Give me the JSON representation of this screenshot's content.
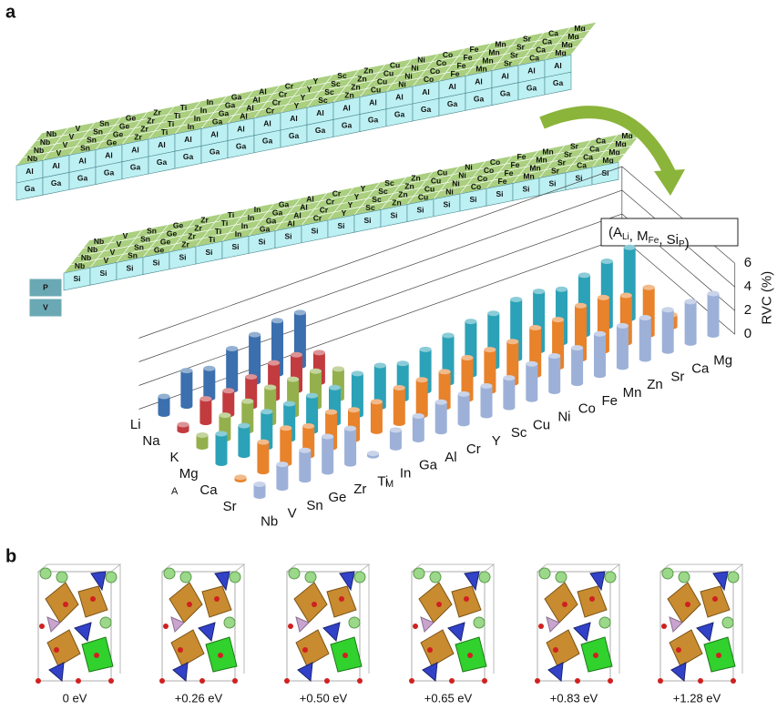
{
  "panel_labels": [
    "a",
    "b"
  ],
  "blocks": {
    "m_elements": [
      "Nb",
      "V",
      "Sn",
      "Ge",
      "Zr",
      "Ti",
      "In",
      "Ga",
      "Al",
      "Cr",
      "Y",
      "Sc",
      "Zn",
      "Cu",
      "Ni",
      "Co",
      "Fe",
      "Mn",
      "Sr",
      "Ca",
      "Mg"
    ],
    "x_elements": [
      "Al",
      "Ga",
      "Si"
    ],
    "side_labels": [
      "P",
      "V"
    ]
  },
  "chart_data": {
    "type": "bar3d",
    "annotation": {
      "parts": [
        "(A",
        ",  M",
        ",  Si",
        ")"
      ],
      "subscripts": [
        "Li",
        "Fe",
        "P"
      ]
    },
    "y_label": "RVC (%)",
    "x_label": "M",
    "series_axis_label": "A",
    "categories": [
      "Nb",
      "V",
      "Sn",
      "Ge",
      "Zr",
      "Ti",
      "In",
      "Ga",
      "Al",
      "Cr",
      "Y",
      "Sc",
      "Cu",
      "Ni",
      "Co",
      "Fe",
      "Mn",
      "Zn",
      "Sr",
      "Ca",
      "Mg"
    ],
    "series": [
      {
        "name": "Li",
        "color": "#3b6fae",
        "values": [
          1.5,
          3,
          2.5,
          3.5,
          4,
          4.5,
          4.5,
          null,
          null,
          null,
          null,
          null,
          null,
          null,
          null,
          null,
          null,
          null,
          null,
          null,
          null
        ]
      },
      {
        "name": "Na",
        "color": "#c23b3f",
        "values": [
          0.5,
          2,
          2,
          2.5,
          3,
          3,
          2.5,
          null,
          null,
          null,
          null,
          null,
          null,
          null,
          null,
          null,
          null,
          null,
          null,
          null,
          null
        ]
      },
      {
        "name": "K",
        "color": "#93b04c",
        "values": [
          1,
          2,
          2.5,
          3,
          3,
          3,
          2.5,
          null,
          null,
          null,
          null,
          null,
          null,
          null,
          null,
          null,
          null,
          null,
          null,
          null,
          null
        ]
      },
      {
        "name": "Mg",
        "color": "#2ba2b7",
        "values": [
          2.5,
          2.5,
          3,
          3,
          3,
          3,
          3.5,
          3.5,
          3,
          3.5,
          4,
          4.5,
          4.5,
          5,
          5,
          4.5,
          5,
          5.5,
          6,
          null,
          null
        ]
      },
      {
        "name": "Ca",
        "color": "#e8822b",
        "values": [
          0.2,
          2.5,
          3,
          2.5,
          3,
          2.5,
          2.5,
          3,
          3,
          3,
          3.5,
          3.5,
          3.5,
          4,
          4,
          4.5,
          4.5,
          4,
          4,
          1,
          null
        ]
      },
      {
        "name": "Sr",
        "color": "#9db1d8",
        "values": [
          1,
          2,
          2.5,
          3,
          3,
          0.2,
          1.5,
          2,
          2.5,
          2.5,
          2.5,
          2.5,
          3,
          3,
          3,
          3.5,
          3.5,
          3.5,
          3.5,
          3.5,
          3.5
        ]
      }
    ],
    "ylim": [
      0,
      6
    ],
    "yticks": [
      0,
      2,
      4,
      6
    ],
    "grid": true
  },
  "panel_b": {
    "energies": [
      "0 eV",
      "+0.26 eV",
      "+0.50 eV",
      "+0.65 eV",
      "+0.83 eV",
      "+1.28 eV"
    ]
  }
}
